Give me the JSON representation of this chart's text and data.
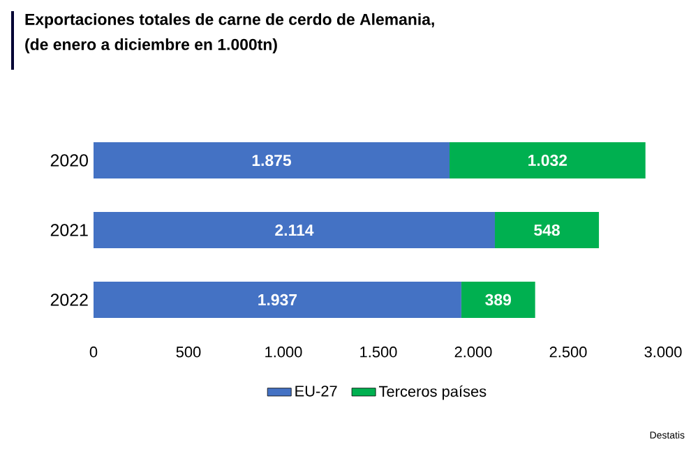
{
  "chart_data": {
    "type": "bar",
    "orientation": "horizontal",
    "stacked": true,
    "title": "Exportaciones totales de carne de cerdo de Alemania,",
    "subtitle": "(de enero a diciembre en 1.000tn)",
    "categories": [
      "2020",
      "2021",
      "2022"
    ],
    "series": [
      {
        "name": "EU-27",
        "color": "#4472c4",
        "values": [
          1875,
          2114,
          1937
        ],
        "value_labels": [
          "1.875",
          "2.114",
          "1.937"
        ]
      },
      {
        "name": "Terceros países",
        "color": "#00b050",
        "values": [
          1032,
          548,
          389
        ],
        "value_labels": [
          "1.032",
          "548",
          "389"
        ]
      }
    ],
    "xlim": [
      0,
      3000
    ],
    "xticks": [
      0,
      {
        "value": 500,
        "label": "500"
      },
      {
        "value": 1000,
        "label": "1.000"
      },
      {
        "value": 1500,
        "label": "1.500"
      },
      {
        "value": 2000,
        "label": "2.000"
      },
      {
        "value": 2500,
        "label": "2.500"
      },
      {
        "value": 3000,
        "label": "3.000"
      }
    ],
    "grid": false,
    "legend": "bottom",
    "annotations": [
      "Destatis"
    ]
  }
}
